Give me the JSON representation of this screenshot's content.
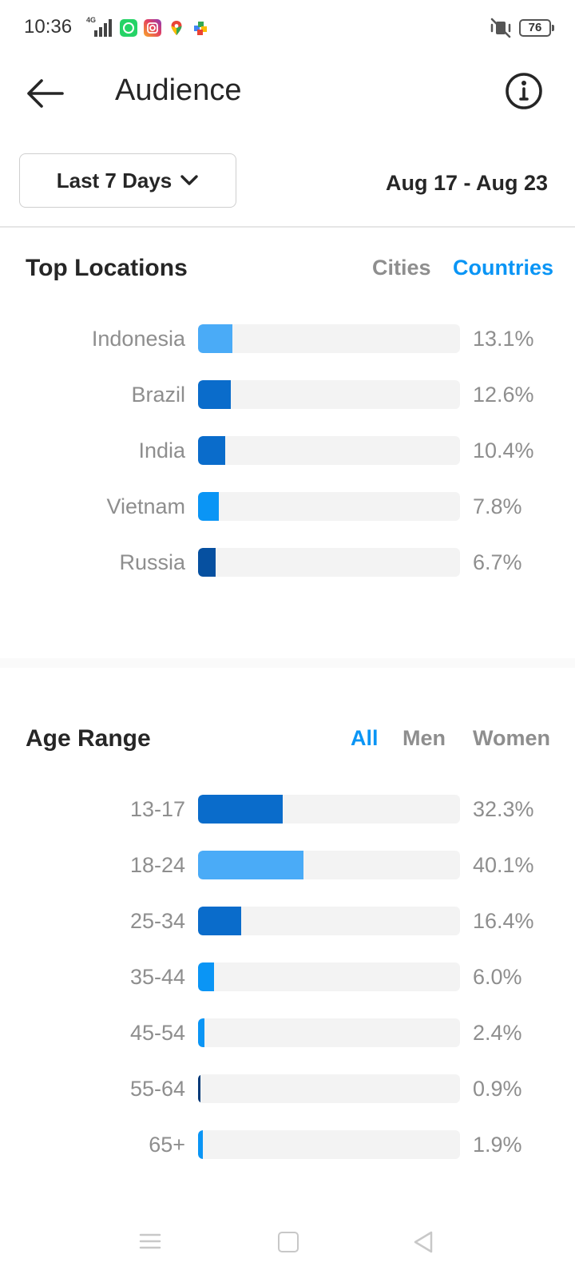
{
  "status_bar": {
    "time": "10:36",
    "network": "4G",
    "battery": "76",
    "icons": [
      "signal-icon",
      "whatsapp-icon",
      "instagram-icon",
      "maps-icon",
      "games-icon",
      "mute-icon",
      "battery-icon"
    ]
  },
  "header": {
    "title": "Audience"
  },
  "filter": {
    "range_label": "Last 7 Days",
    "date_range": "Aug 17 - Aug 23"
  },
  "top_locations": {
    "title": "Top Locations",
    "tabs": [
      {
        "label": "Cities",
        "active": false
      },
      {
        "label": "Countries",
        "active": true
      }
    ],
    "rows": [
      {
        "label": "Indonesia",
        "value": "13.1%",
        "pct": 13.1,
        "color": "#4aabf7"
      },
      {
        "label": "Brazil",
        "value": "12.6%",
        "pct": 12.6,
        "color": "#0a6ccb"
      },
      {
        "label": "India",
        "value": "10.4%",
        "pct": 10.4,
        "color": "#0a6ccb"
      },
      {
        "label": "Vietnam",
        "value": "7.8%",
        "pct": 7.8,
        "color": "#0a95f5"
      },
      {
        "label": "Russia",
        "value": "6.7%",
        "pct": 6.7,
        "color": "#0650a0"
      }
    ]
  },
  "age_range": {
    "title": "Age Range",
    "tabs": [
      {
        "label": "All",
        "active": true
      },
      {
        "label": "Men",
        "active": false
      },
      {
        "label": "Women",
        "active": false
      }
    ],
    "rows": [
      {
        "label": "13-17",
        "value": "32.3%",
        "pct": 32.3,
        "color": "#0a6ccb"
      },
      {
        "label": "18-24",
        "value": "40.1%",
        "pct": 40.1,
        "color": "#4aabf7"
      },
      {
        "label": "25-34",
        "value": "16.4%",
        "pct": 16.4,
        "color": "#0a6ccb"
      },
      {
        "label": "35-44",
        "value": "6.0%",
        "pct": 6.0,
        "color": "#0a95f5"
      },
      {
        "label": "45-54",
        "value": "2.4%",
        "pct": 2.4,
        "color": "#0a95f5"
      },
      {
        "label": "55-64",
        "value": "0.9%",
        "pct": 0.9,
        "color": "#053a78"
      },
      {
        "label": "65+",
        "value": "1.9%",
        "pct": 1.9,
        "color": "#0a95f5"
      }
    ]
  },
  "colors": {
    "accent": "#0a95f5",
    "muted_text": "#8e8e8e",
    "track": "#f3f3f3"
  }
}
